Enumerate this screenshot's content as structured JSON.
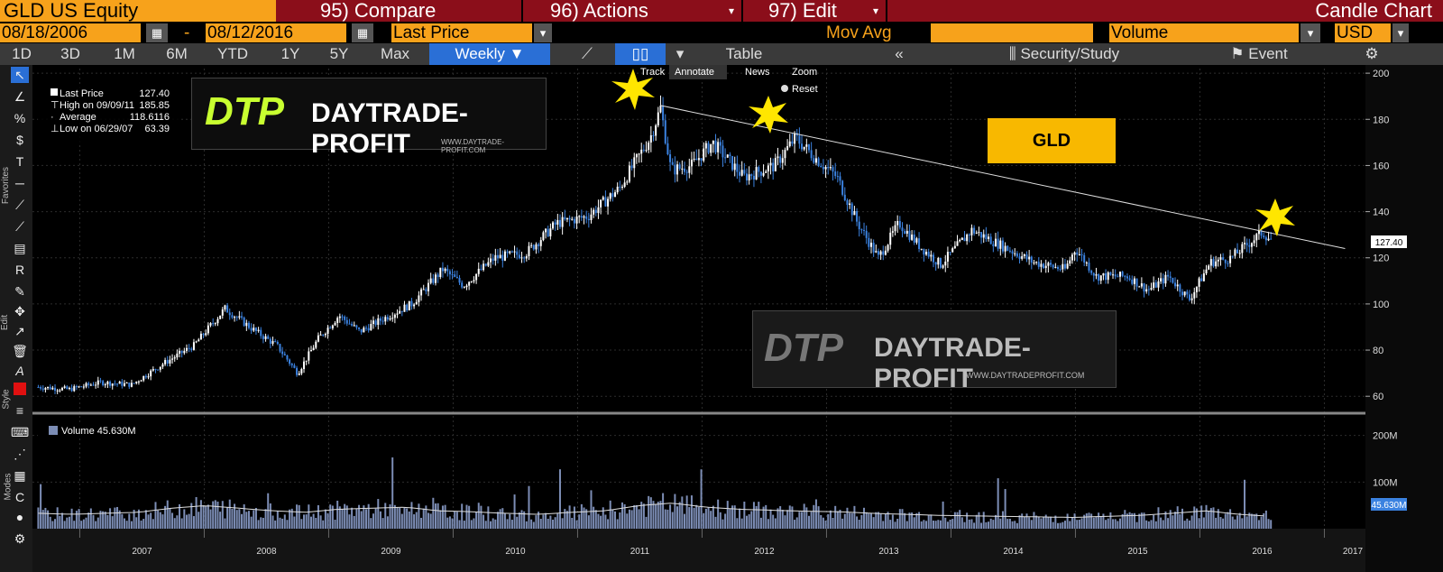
{
  "topbar": {
    "ticker": "GLD US Equity",
    "compare": "95) Compare",
    "actions": "96) Actions",
    "edit": "97) Edit",
    "chart_type": "Candle Chart"
  },
  "daterow": {
    "start_date": "08/18/2006",
    "dash": "-",
    "end_date": "08/12/2016",
    "price_field": "Last Price",
    "mov_avg": "Mov Avg",
    "volume_field": "Volume",
    "currency": "USD"
  },
  "periods": [
    "1D",
    "3D",
    "1M",
    "6M",
    "YTD",
    "1Y",
    "5Y",
    "Max"
  ],
  "frequency": "Weekly",
  "view_tabs": {
    "table": "Table"
  },
  "toolbar_right": {
    "security_study": "Security/Study",
    "event": "Event",
    "track": "Track",
    "annotate": "Annotate",
    "news": "News",
    "zoom": "Zoom",
    "reset": "Reset"
  },
  "legend": {
    "last_label": "Last Price",
    "last_value": "127.40",
    "high_label": "High on 09/09/11",
    "high_value": "185.85",
    "avg_label": "Average",
    "avg_value": "118.6116",
    "low_label": "Low on 06/29/07",
    "low_value": "63.39"
  },
  "volume_legend": "Volume 45.630M",
  "current_price_tag": "127.40",
  "volume_tag": "45.630M",
  "annotation_label": "GLD",
  "watermark": {
    "logo": "DTP",
    "brand": "DAYTRADE-PROFIT",
    "url": "WWW.DAYTRADE-PROFIT.COM",
    "url2": "WWW.DAYTRADEPROFIT.COM"
  },
  "left_toolbar_labels": {
    "favorites": "Favorites",
    "edit": "Edit",
    "style": "Style",
    "modes": "Modes"
  },
  "colors": {
    "accent": "#f7a21b",
    "topbar": "#8b0e1a",
    "active": "#2a6fd6",
    "up_candle": "#ffffff",
    "down_candle": "#3b82e0",
    "gld_box": "#f8b800"
  },
  "chart_data": {
    "type": "candlestick",
    "price_axis": {
      "ticks": [
        60,
        80,
        100,
        120,
        140,
        160,
        180,
        200
      ],
      "ylim": [
        55,
        202
      ]
    },
    "volume_axis": {
      "ticks": [
        "200M",
        "100M"
      ],
      "ylim": [
        0,
        240
      ]
    },
    "x_ticks": [
      "2007",
      "2008",
      "2009",
      "2010",
      "2011",
      "2012",
      "2013",
      "2014",
      "2015",
      "2016",
      "2017"
    ],
    "price_path": [
      [
        "2006-09",
        64
      ],
      [
        "2006-12",
        63
      ],
      [
        "2007-03",
        66
      ],
      [
        "2007-06",
        65
      ],
      [
        "2007-09",
        74
      ],
      [
        "2007-12",
        82
      ],
      [
        "2008-03",
        98
      ],
      [
        "2008-06",
        88
      ],
      [
        "2008-08",
        82
      ],
      [
        "2008-10",
        70
      ],
      [
        "2008-12",
        85
      ],
      [
        "2009-02",
        95
      ],
      [
        "2009-04",
        88
      ],
      [
        "2009-06",
        93
      ],
      [
        "2009-09",
        100
      ],
      [
        "2009-12",
        115
      ],
      [
        "2010-02",
        108
      ],
      [
        "2010-05",
        120
      ],
      [
        "2010-08",
        122
      ],
      [
        "2010-11",
        135
      ],
      [
        "2011-02",
        138
      ],
      [
        "2011-05",
        150
      ],
      [
        "2011-08",
        172
      ],
      [
        "2011-09",
        185
      ],
      [
        "2011-10",
        158
      ],
      [
        "2011-12",
        160
      ],
      [
        "2012-02",
        170
      ],
      [
        "2012-05",
        155
      ],
      [
        "2012-08",
        160
      ],
      [
        "2012-10",
        172
      ],
      [
        "2012-12",
        163
      ],
      [
        "2013-02",
        155
      ],
      [
        "2013-04",
        135
      ],
      [
        "2013-06",
        120
      ],
      [
        "2013-08",
        135
      ],
      [
        "2013-10",
        125
      ],
      [
        "2013-12",
        117
      ],
      [
        "2014-03",
        132
      ],
      [
        "2014-06",
        125
      ],
      [
        "2014-09",
        118
      ],
      [
        "2014-12",
        115
      ],
      [
        "2015-01",
        124
      ],
      [
        "2015-03",
        112
      ],
      [
        "2015-06",
        112
      ],
      [
        "2015-08",
        106
      ],
      [
        "2015-10",
        112
      ],
      [
        "2015-12",
        102
      ],
      [
        "2016-02",
        118
      ],
      [
        "2016-04",
        120
      ],
      [
        "2016-07",
        131
      ],
      [
        "2016-08",
        127.4
      ]
    ],
    "trendline": [
      [
        "2011-09",
        186
      ],
      [
        "2017-03",
        124
      ]
    ],
    "volume_avg_m": [
      30,
      28,
      30,
      32,
      40,
      45,
      40,
      35,
      32,
      38,
      40,
      42,
      35,
      33,
      30,
      28,
      32,
      35,
      45,
      50,
      42,
      38,
      36,
      34,
      33,
      30,
      28,
      26,
      25,
      24,
      23,
      22,
      24,
      26,
      30,
      35,
      28,
      24
    ]
  }
}
